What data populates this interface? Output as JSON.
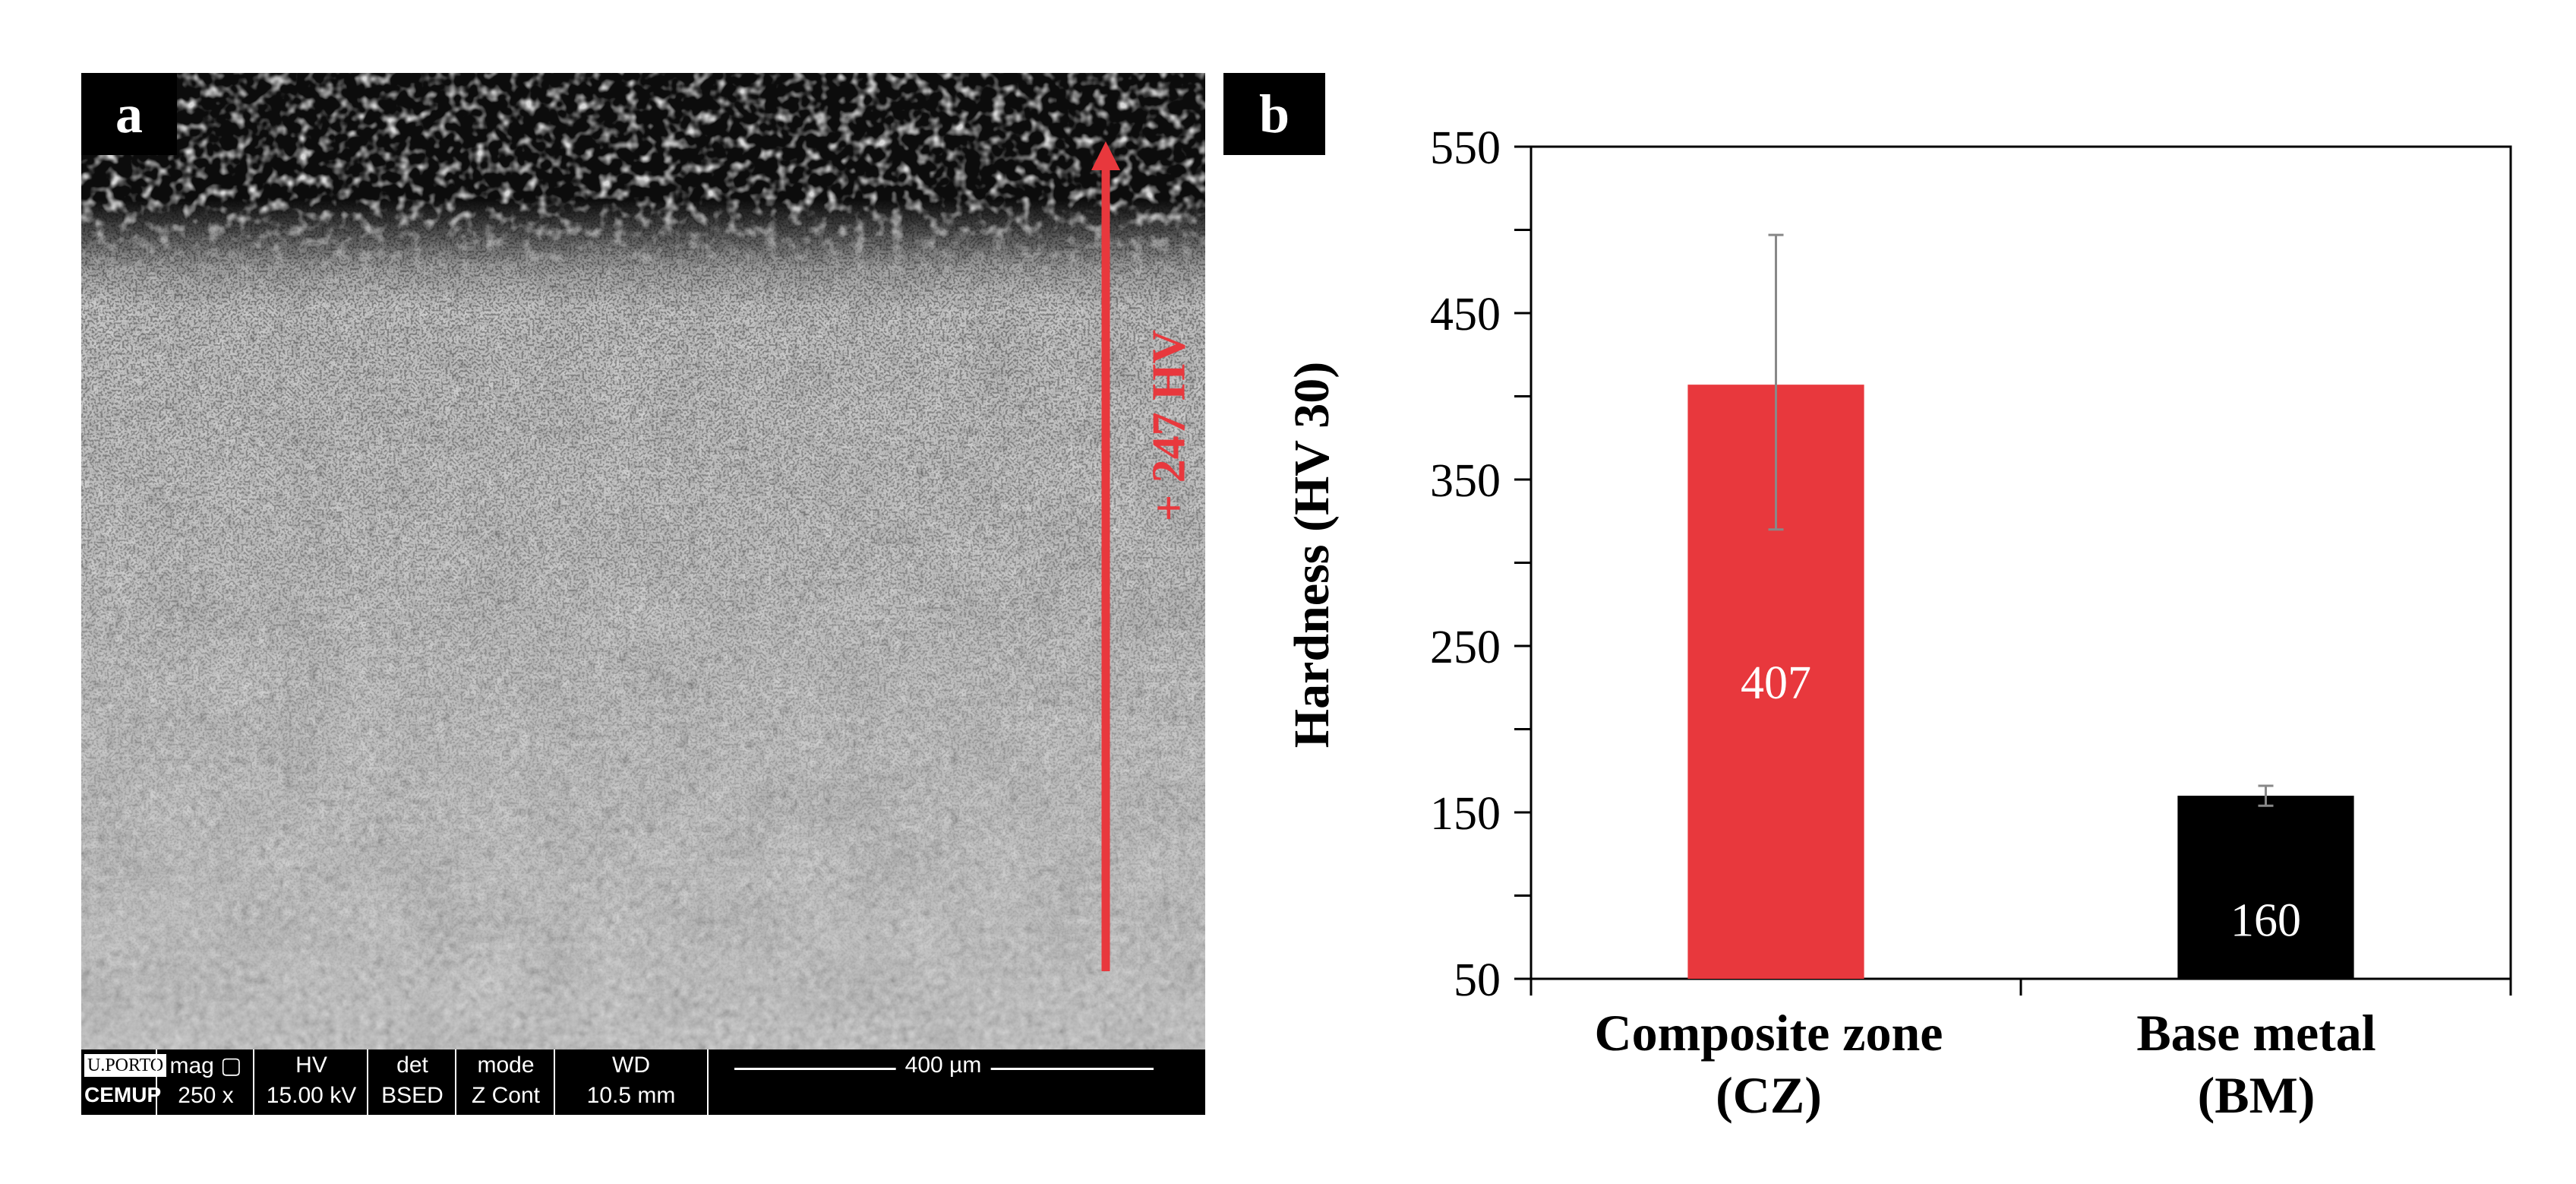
{
  "panels": {
    "a": "a",
    "b": "b"
  },
  "micrograph": {
    "annotation": "+ 247 HV",
    "arrow_color": "#e8383d",
    "info_bar": {
      "logo_top": "U.PORTO",
      "logo_bottom": "CEMUP",
      "fields": [
        {
          "header": "mag ▢",
          "value": "250 x"
        },
        {
          "header": "HV",
          "value": "15.00 kV"
        },
        {
          "header": "det",
          "value": "BSED"
        },
        {
          "header": "mode",
          "value": "Z Cont"
        },
        {
          "header": "WD",
          "value": "10.5 mm"
        }
      ],
      "scale_label": "400 µm"
    }
  },
  "chart_data": {
    "type": "bar",
    "categories": [
      "Composite zone (CZ)",
      "Base metal (BM)"
    ],
    "category_lines": [
      [
        "Composite zone",
        "(CZ)"
      ],
      [
        "Base metal",
        "(BM)"
      ]
    ],
    "values": [
      407,
      160
    ],
    "data_labels": [
      "407",
      "160"
    ],
    "error_bars": [
      [
        320,
        497
      ],
      [
        154,
        166
      ]
    ],
    "bar_colors": [
      "#e8383d",
      "#000000"
    ],
    "ylabel": "Hardness (HV 30)",
    "xlabel": "",
    "ylim": [
      50,
      550
    ],
    "yticks": [
      50,
      150,
      250,
      350,
      450,
      550
    ],
    "grid": false
  }
}
